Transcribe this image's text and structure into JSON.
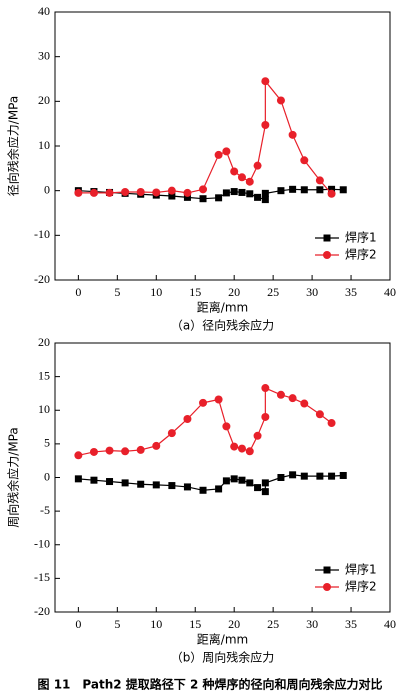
{
  "chart_data": [
    {
      "type": "line",
      "xlabel": "距离/mm",
      "ylabel": "径向残余应力/MPa",
      "caption": "（a）径向残余应力",
      "xlim": [
        -3,
        40
      ],
      "xticks": [
        0,
        5,
        10,
        15,
        20,
        25,
        30,
        35,
        40
      ],
      "ylim": [
        -20,
        40
      ],
      "yticks": [
        -20,
        -10,
        0,
        10,
        20,
        30,
        40
      ],
      "legend": "lower right",
      "series": [
        {
          "name": "焊序1",
          "color": "#000000",
          "marker": "square",
          "x": [
            0,
            2,
            4,
            6,
            8,
            10,
            12,
            14,
            16,
            18,
            19,
            20,
            21,
            22,
            23,
            24,
            24,
            26,
            27.5,
            29,
            31,
            32.5,
            34
          ],
          "values": [
            0,
            -0.2,
            -0.4,
            -0.6,
            -0.8,
            -1,
            -1.2,
            -1.5,
            -1.8,
            -1.6,
            -0.5,
            -0.2,
            -0.4,
            -0.7,
            -1.5,
            -2,
            -0.6,
            0,
            0.3,
            0.2,
            0.2,
            0.3,
            0.2
          ]
        },
        {
          "name": "焊序2",
          "color": "#e8202a",
          "marker": "circle",
          "x": [
            0,
            2,
            4,
            6,
            8,
            10,
            12,
            14,
            16,
            18,
            19,
            20,
            21,
            22,
            23,
            24,
            24,
            26,
            27.5,
            29,
            31,
            32.5
          ],
          "values": [
            -0.5,
            -0.5,
            -0.5,
            -0.3,
            -0.3,
            -0.4,
            0,
            -0.5,
            0.3,
            8,
            8.8,
            4.3,
            3,
            2,
            5.6,
            14.7,
            24.5,
            20.2,
            12.5,
            6.8,
            2.3,
            -0.7
          ]
        }
      ]
    },
    {
      "type": "line",
      "xlabel": "距离/mm",
      "ylabel": "周向残余应力/MPa",
      "caption": "（b）周向残余应力",
      "xlim": [
        -3,
        40
      ],
      "xticks": [
        0,
        5,
        10,
        15,
        20,
        25,
        30,
        35,
        40
      ],
      "ylim": [
        -20,
        20
      ],
      "yticks": [
        -20,
        -15,
        -10,
        -5,
        0,
        5,
        10,
        15,
        20
      ],
      "legend": "lower right",
      "series": [
        {
          "name": "焊序1",
          "color": "#000000",
          "marker": "square",
          "x": [
            0,
            2,
            4,
            6,
            8,
            10,
            12,
            14,
            16,
            18,
            19,
            20,
            21,
            22,
            23,
            24,
            24,
            26,
            27.5,
            29,
            31,
            32.5,
            34
          ],
          "values": [
            -0.2,
            -0.4,
            -0.6,
            -0.8,
            -1,
            -1.1,
            -1.2,
            -1.4,
            -1.9,
            -1.7,
            -0.5,
            -0.2,
            -0.4,
            -0.8,
            -1.5,
            -2.1,
            -0.8,
            0,
            0.4,
            0.2,
            0.2,
            0.2,
            0.3
          ]
        },
        {
          "name": "焊序2",
          "color": "#e8202a",
          "marker": "circle",
          "x": [
            0,
            2,
            4,
            6,
            8,
            10,
            12,
            14,
            16,
            18,
            19,
            20,
            21,
            22,
            23,
            24,
            24,
            26,
            27.5,
            29,
            31,
            32.5
          ],
          "values": [
            3.3,
            3.8,
            4,
            3.9,
            4.1,
            4.7,
            6.6,
            8.7,
            11.1,
            11.6,
            7.6,
            4.6,
            4.3,
            3.9,
            6.2,
            9,
            13.3,
            12.3,
            11.8,
            11,
            9.4,
            8.1
          ]
        }
      ]
    }
  ],
  "figure_caption": "图 11　Path2 提取路径下 2 种焊序的径向和周向残余应力对比"
}
